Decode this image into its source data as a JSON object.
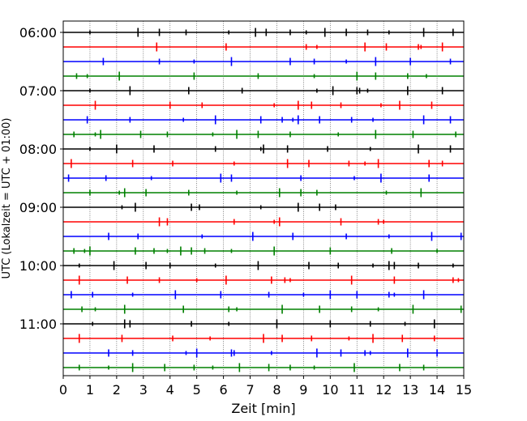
{
  "chart_data": {
    "type": "line",
    "xlabel": "Zeit  [min]",
    "ylabel": "UTC (Lokalzeit = UTC + 01:00)",
    "xlim": [
      0,
      15
    ],
    "x_ticks": [
      "0",
      "1",
      "2",
      "3",
      "4",
      "5",
      "6",
      "7",
      "8",
      "9",
      "10",
      "11",
      "12",
      "13",
      "14",
      "15"
    ],
    "y_ticks": [
      "06:00",
      "07:00",
      "08:00",
      "09:00",
      "10:00",
      "11:00"
    ],
    "traces_per_hour": 4,
    "trace_minutes": 15,
    "grid": "vertical dotted at each minute",
    "line_colors": [
      "#000000",
      "#ff0000",
      "#0000ff",
      "#008000"
    ],
    "traces": [
      {
        "time": "06:00",
        "color": "#000000",
        "events": [
          1.0,
          2.8,
          3.6,
          4.6,
          6.2,
          7.2,
          7.6,
          8.5,
          9.1,
          9.8,
          10.6,
          11.4,
          12.2,
          13.5,
          14.6
        ]
      },
      {
        "time": "06:15",
        "color": "#ff0000",
        "events": [
          3.5,
          6.1,
          9.1,
          9.5,
          11.3,
          12.1,
          13.3,
          13.4,
          14.2
        ]
      },
      {
        "time": "06:30",
        "color": "#0000ff",
        "events": [
          1.5,
          3.6,
          4.9,
          6.3,
          8.5,
          9.4,
          10.6,
          11.7,
          13.0,
          14.5
        ]
      },
      {
        "time": "06:45",
        "color": "#008000",
        "events": [
          0.5,
          0.9,
          2.1,
          4.9,
          7.3,
          9.4,
          11.0,
          11.7,
          12.9,
          13.6
        ]
      },
      {
        "time": "07:00",
        "color": "#000000",
        "events": [
          1.0,
          2.5,
          4.7,
          6.7,
          9.5,
          10.1,
          11.0,
          11.1,
          11.4,
          12.9,
          14.2
        ]
      },
      {
        "time": "07:15",
        "color": "#ff0000",
        "events": [
          1.2,
          4.0,
          5.2,
          7.9,
          8.8,
          9.3,
          10.4,
          11.9,
          12.6,
          13.8
        ]
      },
      {
        "time": "07:30",
        "color": "#0000ff",
        "events": [
          0.9,
          2.5,
          4.5,
          5.7,
          7.4,
          8.2,
          8.6,
          8.8,
          9.6,
          10.8,
          11.6,
          13.5,
          14.5
        ]
      },
      {
        "time": "07:45",
        "color": "#008000",
        "events": [
          0.4,
          1.2,
          1.4,
          2.9,
          3.9,
          5.6,
          6.5,
          7.3,
          8.5,
          10.3,
          11.7,
          13.1,
          14.7
        ]
      },
      {
        "time": "08:00",
        "color": "#000000",
        "events": [
          1.0,
          2.0,
          3.4,
          5.7,
          7.4,
          7.5,
          8.4,
          9.9,
          11.5,
          13.3,
          14.5
        ]
      },
      {
        "time": "08:15",
        "color": "#ff0000",
        "events": [
          0.3,
          2.6,
          4.1,
          6.4,
          8.4,
          9.2,
          10.7,
          11.3,
          11.8,
          13.7,
          14.2
        ]
      },
      {
        "time": "08:30",
        "color": "#0000ff",
        "events": [
          0.2,
          1.6,
          3.3,
          5.9,
          6.3,
          8.9,
          10.9,
          11.9,
          13.7
        ]
      },
      {
        "time": "08:45",
        "color": "#008000",
        "events": [
          1.0,
          2.1,
          2.3,
          3.1,
          4.7,
          6.5,
          8.1,
          8.9,
          9.5,
          12.1,
          13.4
        ]
      },
      {
        "time": "09:00",
        "color": "#000000",
        "events": [
          2.2,
          2.7,
          4.8,
          5.1,
          7.4,
          8.8,
          9.6,
          10.2
        ]
      },
      {
        "time": "09:15",
        "color": "#ff0000",
        "events": [
          3.6,
          3.9,
          6.4,
          7.9,
          8.1,
          10.4,
          11.8,
          12.0
        ]
      },
      {
        "time": "09:30",
        "color": "#0000ff",
        "events": [
          1.7,
          2.8,
          5.2,
          7.1,
          8.6,
          10.6,
          12.2,
          13.8,
          14.9
        ]
      },
      {
        "time": "09:45",
        "color": "#008000",
        "events": [
          0.4,
          0.8,
          1.0,
          2.7,
          3.4,
          3.9,
          4.4,
          4.8,
          5.3,
          6.3,
          7.9,
          10.0,
          12.3,
          14.0
        ]
      },
      {
        "time": "10:00",
        "color": "#000000",
        "events": [
          0.6,
          1.9,
          3.1,
          4.0,
          5.7,
          7.3,
          9.2,
          10.3,
          11.6,
          12.2,
          12.4,
          13.3,
          14.6
        ]
      },
      {
        "time": "10:15",
        "color": "#ff0000",
        "events": [
          0.6,
          2.4,
          3.6,
          5.0,
          6.1,
          7.8,
          8.3,
          8.5,
          10.8,
          12.4,
          14.6,
          14.8
        ]
      },
      {
        "time": "10:30",
        "color": "#0000ff",
        "events": [
          0.3,
          1.1,
          2.6,
          4.2,
          5.9,
          7.7,
          9.0,
          10.0,
          11.0,
          12.2,
          12.4,
          13.5
        ]
      },
      {
        "time": "10:45",
        "color": "#008000",
        "events": [
          0.7,
          1.2,
          2.3,
          4.5,
          6.2,
          6.5,
          8.2,
          9.6,
          10.8,
          11.8,
          13.1,
          14.9
        ]
      },
      {
        "time": "11:00",
        "color": "#000000",
        "events": [
          1.1,
          2.3,
          2.5,
          4.8,
          6.2,
          8.0,
          10.0,
          11.5,
          12.8,
          13.9
        ]
      },
      {
        "time": "11:15",
        "color": "#ff0000",
        "events": [
          0.6,
          2.2,
          4.1,
          5.5,
          7.5,
          8.2,
          9.3,
          10.7,
          11.6,
          12.7,
          13.9
        ]
      },
      {
        "time": "11:30",
        "color": "#0000ff",
        "events": [
          1.7,
          2.6,
          4.6,
          5.0,
          6.3,
          6.4,
          7.8,
          9.5,
          10.4,
          11.3,
          11.5,
          12.9,
          14.0
        ]
      },
      {
        "time": "11:45",
        "color": "#008000",
        "events": [
          0.6,
          1.7,
          2.6,
          3.8,
          4.9,
          5.6,
          6.6,
          7.7,
          8.5,
          9.4,
          10.9,
          12.6,
          13.5
        ]
      }
    ]
  }
}
